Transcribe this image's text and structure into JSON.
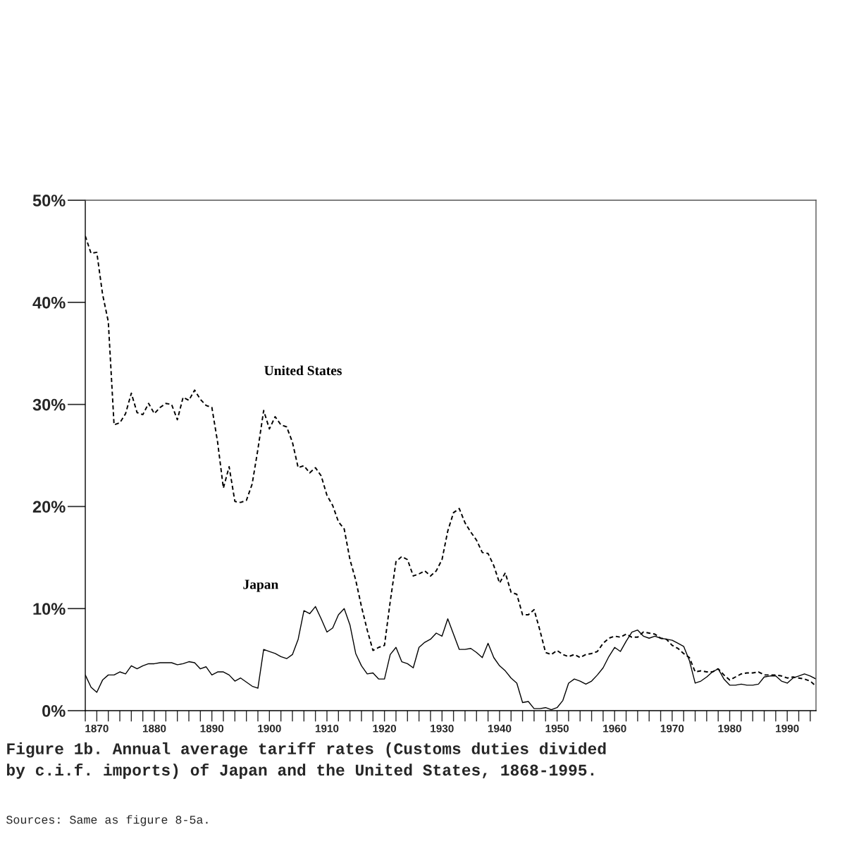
{
  "chart_data": {
    "type": "line",
    "title": "Figure 1b. Annual average tariff rates (Customs duties divided\nby c.i.f. imports) of Japan and the United States, 1868-1995.",
    "annotations": [
      "Sources: Same as figure 8-5a."
    ],
    "x": [
      1868,
      1869,
      1870,
      1871,
      1872,
      1873,
      1874,
      1875,
      1876,
      1877,
      1878,
      1879,
      1880,
      1881,
      1882,
      1883,
      1884,
      1885,
      1886,
      1887,
      1888,
      1889,
      1890,
      1891,
      1892,
      1893,
      1894,
      1895,
      1896,
      1897,
      1898,
      1899,
      1900,
      1901,
      1902,
      1903,
      1904,
      1905,
      1906,
      1907,
      1908,
      1909,
      1910,
      1911,
      1912,
      1913,
      1914,
      1915,
      1916,
      1917,
      1918,
      1919,
      1920,
      1921,
      1922,
      1923,
      1924,
      1925,
      1926,
      1927,
      1928,
      1929,
      1930,
      1931,
      1932,
      1933,
      1934,
      1935,
      1936,
      1937,
      1938,
      1939,
      1940,
      1941,
      1942,
      1943,
      1944,
      1945,
      1946,
      1947,
      1948,
      1949,
      1950,
      1951,
      1952,
      1953,
      1954,
      1955,
      1956,
      1957,
      1958,
      1959,
      1960,
      1961,
      1962,
      1963,
      1964,
      1965,
      1966,
      1967,
      1968,
      1969,
      1970,
      1971,
      1972,
      1973,
      1974,
      1975,
      1976,
      1977,
      1978,
      1979,
      1980,
      1981,
      1982,
      1983,
      1984,
      1985,
      1986,
      1987,
      1988,
      1989,
      1990,
      1991,
      1992,
      1993,
      1994,
      1995
    ],
    "series": [
      {
        "name": "United States",
        "color": "#000000",
        "line_style": "dashed",
        "values": [
          46.5,
          44.8,
          44.9,
          40.8,
          38.1,
          28.0,
          28.2,
          29.1,
          31.1,
          29.2,
          29.0,
          30.1,
          29.1,
          29.7,
          30.1,
          30.0,
          28.5,
          30.7,
          30.4,
          31.4,
          30.5,
          29.9,
          29.7,
          26.3,
          21.8,
          23.9,
          20.5,
          20.4,
          20.6,
          22.2,
          25.6,
          29.4,
          27.6,
          28.8,
          28.0,
          27.8,
          26.3,
          23.8,
          24.0,
          23.3,
          23.8,
          23.0,
          21.1,
          20.1,
          18.5,
          17.8,
          14.8,
          12.8,
          10.2,
          7.9,
          5.9,
          6.2,
          6.4,
          10.7,
          14.6,
          15.1,
          14.8,
          13.2,
          13.4,
          13.7,
          13.2,
          13.7,
          14.8,
          17.6,
          19.4,
          19.8,
          18.4,
          17.5,
          16.7,
          15.5,
          15.4,
          14.2,
          12.5,
          13.5,
          11.6,
          11.4,
          9.4,
          9.4,
          9.9,
          7.9,
          5.7,
          5.5,
          5.9,
          5.5,
          5.3,
          5.5,
          5.2,
          5.5,
          5.6,
          5.8,
          6.6,
          7.1,
          7.3,
          7.2,
          7.5,
          7.2,
          7.2,
          7.7,
          7.6,
          7.5,
          7.1,
          7.0,
          6.4,
          6.1,
          5.6,
          5.2,
          3.8,
          3.9,
          3.8,
          3.8,
          4.1,
          3.5,
          3.0,
          3.3,
          3.6,
          3.7,
          3.7,
          3.8,
          3.5,
          3.5,
          3.5,
          3.4,
          3.2,
          3.3,
          3.2,
          3.1,
          2.9,
          2.4
        ]
      },
      {
        "name": "Japan",
        "color": "#000000",
        "line_style": "solid",
        "values": [
          3.5,
          2.3,
          1.8,
          3.0,
          3.5,
          3.5,
          3.8,
          3.6,
          4.4,
          4.1,
          4.4,
          4.6,
          4.6,
          4.7,
          4.7,
          4.7,
          4.5,
          4.6,
          4.8,
          4.7,
          4.1,
          4.3,
          3.5,
          3.8,
          3.8,
          3.5,
          2.9,
          3.2,
          2.8,
          2.4,
          2.2,
          6.0,
          5.8,
          5.6,
          5.3,
          5.1,
          5.5,
          7.0,
          9.8,
          9.5,
          10.2,
          9.0,
          7.7,
          8.1,
          9.4,
          10.0,
          8.4,
          5.6,
          4.4,
          3.6,
          3.7,
          3.1,
          3.1,
          5.5,
          6.2,
          4.8,
          4.6,
          4.2,
          6.2,
          6.7,
          7.0,
          7.6,
          7.3,
          9.0,
          7.5,
          6.0,
          6.0,
          6.1,
          5.7,
          5.2,
          6.6,
          5.2,
          4.4,
          3.9,
          3.2,
          2.7,
          0.8,
          0.9,
          0.2,
          0.2,
          0.3,
          0.1,
          0.3,
          1.0,
          2.7,
          3.1,
          2.9,
          2.6,
          2.9,
          3.5,
          4.2,
          5.3,
          6.2,
          5.8,
          6.8,
          7.7,
          7.9,
          7.3,
          7.1,
          7.3,
          7.1,
          7.0,
          6.9,
          6.6,
          6.3,
          4.9,
          2.7,
          2.9,
          3.3,
          3.8,
          4.1,
          3.1,
          2.5,
          2.5,
          2.6,
          2.5,
          2.5,
          2.6,
          3.3,
          3.4,
          3.4,
          2.9,
          2.7,
          3.2,
          3.4,
          3.6,
          3.4,
          3.1
        ]
      }
    ],
    "xlim": [
      1868,
      1995
    ],
    "xticks": [
      {
        "value": 1868,
        "label": null
      },
      1870,
      {
        "value": 1872,
        "label": null
      },
      {
        "value": 1874,
        "label": null
      },
      {
        "value": 1876,
        "label": null
      },
      {
        "value": 1878,
        "label": null
      },
      1880,
      {
        "value": 1882,
        "label": null
      },
      {
        "value": 1884,
        "label": null
      },
      {
        "value": 1886,
        "label": null
      },
      {
        "value": 1888,
        "label": null
      },
      1890,
      {
        "value": 1892,
        "label": null
      },
      {
        "value": 1894,
        "label": null
      },
      {
        "value": 1896,
        "label": null
      },
      {
        "value": 1898,
        "label": null
      },
      1900,
      {
        "value": 1902,
        "label": null
      },
      {
        "value": 1904,
        "label": null
      },
      {
        "value": 1906,
        "label": null
      },
      {
        "value": 1908,
        "label": null
      },
      1910,
      {
        "value": 1912,
        "label": null
      },
      {
        "value": 1914,
        "label": null
      },
      {
        "value": 1916,
        "label": null
      },
      {
        "value": 1918,
        "label": null
      },
      1920,
      {
        "value": 1922,
        "label": null
      },
      {
        "value": 1924,
        "label": null
      },
      {
        "value": 1926,
        "label": null
      },
      {
        "value": 1928,
        "label": null
      },
      1930,
      {
        "value": 1932,
        "label": null
      },
      {
        "value": 1934,
        "label": null
      },
      {
        "value": 1936,
        "label": null
      },
      {
        "value": 1938,
        "label": null
      },
      1940,
      {
        "value": 1942,
        "label": null
      },
      {
        "value": 1944,
        "label": null
      },
      {
        "value": 1946,
        "label": null
      },
      {
        "value": 1948,
        "label": null
      },
      1950,
      {
        "value": 1952,
        "label": null
      },
      {
        "value": 1954,
        "label": null
      },
      {
        "value": 1956,
        "label": null
      },
      {
        "value": 1958,
        "label": null
      },
      1960,
      {
        "value": 1962,
        "label": null
      },
      {
        "value": 1964,
        "label": null
      },
      {
        "value": 1966,
        "label": null
      },
      {
        "value": 1968,
        "label": null
      },
      1970,
      {
        "value": 1972,
        "label": null
      },
      {
        "value": 1974,
        "label": null
      },
      {
        "value": 1976,
        "label": null
      },
      {
        "value": 1978,
        "label": null
      },
      1980,
      {
        "value": 1982,
        "label": null
      },
      {
        "value": 1984,
        "label": null
      },
      {
        "value": 1986,
        "label": null
      },
      {
        "value": 1988,
        "label": null
      },
      1990,
      {
        "value": 1992,
        "label": null
      },
      {
        "value": 1994,
        "label": null
      }
    ],
    "ylim": [
      0,
      50
    ],
    "yticks": [
      {
        "value": 0,
        "label": "0%"
      },
      {
        "value": 10,
        "label": "10%"
      },
      {
        "value": 20,
        "label": "20%"
      },
      {
        "value": 30,
        "label": "30%"
      },
      {
        "value": 40,
        "label": "40%"
      },
      {
        "value": 50,
        "label": "50%"
      }
    ],
    "grid": false,
    "legend": false,
    "marker": "none"
  }
}
